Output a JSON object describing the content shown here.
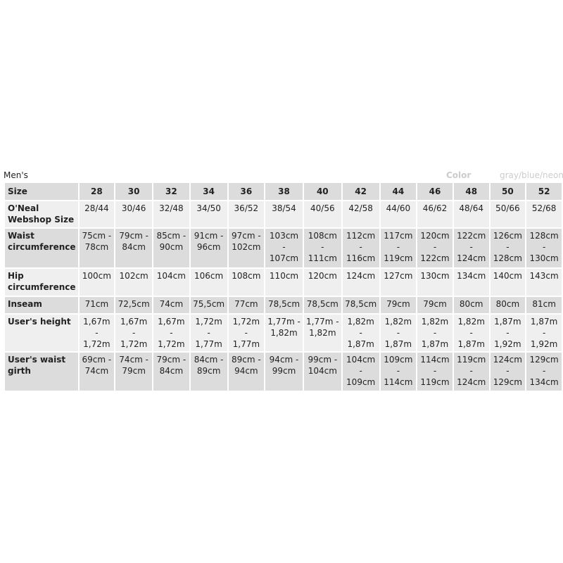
{
  "title": "Men's",
  "color_label": "Color",
  "color_value": "gray/blue/neon",
  "table": {
    "header": {
      "label": "Size",
      "values": [
        "28",
        "30",
        "32",
        "34",
        "36",
        "38",
        "40",
        "42",
        "44",
        "46",
        "48",
        "50",
        "52"
      ]
    },
    "rows": [
      {
        "label": "O'Neal Webshop Size",
        "values": [
          "28/44",
          "30/46",
          "32/48",
          "34/50",
          "36/52",
          "38/54",
          "40/56",
          "42/58",
          "44/60",
          "46/62",
          "48/64",
          "50/66",
          "52/68"
        ]
      },
      {
        "label": "Waist circumference",
        "values": [
          "75cm - 78cm",
          "79cm - 84cm",
          "85cm - 90cm",
          "91cm - 96cm",
          "97cm - 102cm",
          "103cm - 107cm",
          "108cm - 111cm",
          "112cm - 116cm",
          "117cm - 119cm",
          "120cm - 122cm",
          "122cm - 124cm",
          "126cm - 128cm",
          "128cm - 130cm"
        ]
      },
      {
        "label": "Hip circumference",
        "values": [
          "100cm",
          "102cm",
          "104cm",
          "106cm",
          "108cm",
          "110cm",
          "120cm",
          "124cm",
          "127cm",
          "130cm",
          "134cm",
          "140cm",
          "143cm"
        ]
      },
      {
        "label": "Inseam",
        "values": [
          "71cm",
          "72,5cm",
          "74cm",
          "75,5cm",
          "77cm",
          "78,5cm",
          "78,5cm",
          "78,5cm",
          "79cm",
          "79cm",
          "80cm",
          "80cm",
          "81cm"
        ]
      },
      {
        "label": "User's height",
        "values": [
          "1,67m - 1,72m",
          "1,67m - 1,72m",
          "1,67m - 1,72m",
          "1,72m - 1,77m",
          "1,72m - 1,77m",
          "1,77m - 1,82m",
          "1,77m - 1,82m",
          "1,82m - 1,87m",
          "1,82m - 1,87m",
          "1,82m - 1,87m",
          "1,82m - 1,87m",
          "1,87m - 1,92m",
          "1,87m - 1,92m"
        ]
      },
      {
        "label": "User's waist girth",
        "values": [
          "69cm - 74cm",
          "74cm - 79cm",
          "79cm - 84cm",
          "84cm - 89cm",
          "89cm - 94cm",
          "94cm - 99cm",
          "99cm - 104cm",
          "104cm - 109cm",
          "109cm - 114cm",
          "114cm - 119cm",
          "119cm - 124cm",
          "124cm - 129cm",
          "129cm - 134cm"
        ]
      }
    ]
  }
}
